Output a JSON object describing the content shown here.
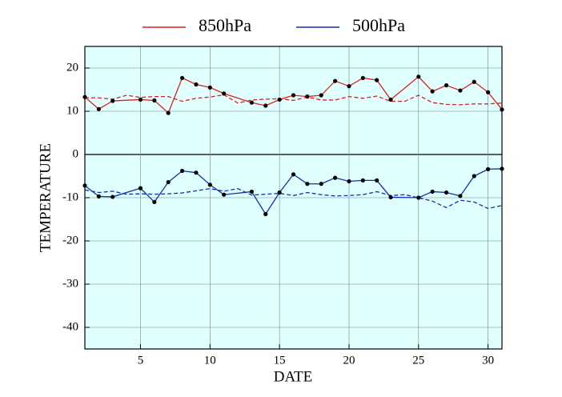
{
  "chart_data": {
    "type": "line",
    "x_label": "DATE",
    "y_label": "TEMPERATURE",
    "xlim": [
      1,
      31
    ],
    "xticks": [
      5,
      10,
      15,
      20,
      25,
      30
    ],
    "ylim": [
      -45,
      25
    ],
    "yticks": [
      -40,
      -30,
      -20,
      -10,
      0,
      10,
      20
    ],
    "grid": true,
    "background": "#e0ffff",
    "legend": "top",
    "series": [
      {
        "name": "850hPa",
        "color": "#e02020",
        "style": "solid",
        "markers": true,
        "x": [
          1,
          2,
          3,
          5,
          6,
          7,
          8,
          9,
          10,
          11,
          13,
          14,
          15,
          16,
          17,
          18,
          19,
          20,
          21,
          22,
          23,
          25,
          26,
          27,
          28,
          29,
          30,
          31
        ],
        "values": [
          13.3,
          10.5,
          12.4,
          12.7,
          12.5,
          9.6,
          17.7,
          16.2,
          15.5,
          14.1,
          12.0,
          11.3,
          12.7,
          13.7,
          13.4,
          13.7,
          17.0,
          15.8,
          17.7,
          17.2,
          12.7,
          18.0,
          14.6,
          16.0,
          14.8,
          16.8,
          14.4,
          10.4
        ]
      },
      {
        "name": "500hPa",
        "color": "#1030b0",
        "style": "solid",
        "markers": true,
        "x": [
          1,
          2,
          3,
          5,
          6,
          7,
          8,
          9,
          10,
          11,
          13,
          14,
          15,
          16,
          17,
          18,
          19,
          20,
          21,
          22,
          23,
          25,
          26,
          27,
          28,
          29,
          30,
          31
        ],
        "values": [
          -7.2,
          -9.7,
          -9.8,
          -7.8,
          -11.0,
          -6.4,
          -3.8,
          -4.2,
          -7.0,
          -9.3,
          -8.6,
          -13.8,
          -8.8,
          -4.6,
          -6.8,
          -6.8,
          -5.4,
          -6.2,
          -6.0,
          -6.0,
          -9.9,
          -10.0,
          -8.6,
          -8.8,
          -9.6,
          -5.0,
          -3.4,
          -3.3
        ]
      },
      {
        "color": "#e02020",
        "style": "dashed",
        "markers": false,
        "x": [
          1,
          2,
          3,
          4,
          5,
          6,
          7,
          8,
          9,
          10,
          11,
          12,
          13,
          14,
          15,
          16,
          17,
          18,
          19,
          20,
          21,
          22,
          23,
          24,
          25,
          26,
          27,
          28,
          29,
          30,
          31
        ],
        "values": [
          13.1,
          13.1,
          12.8,
          13.7,
          13.2,
          13.4,
          13.4,
          12.3,
          13.0,
          13.3,
          13.8,
          11.9,
          12.6,
          12.8,
          12.9,
          12.5,
          13.3,
          12.6,
          12.6,
          13.4,
          13.0,
          13.5,
          12.3,
          12.3,
          13.7,
          12.0,
          11.6,
          11.5,
          11.7,
          11.7,
          11.9
        ]
      },
      {
        "color": "#1030b0",
        "style": "dashed",
        "markers": false,
        "x": [
          1,
          2,
          3,
          4,
          5,
          6,
          7,
          8,
          9,
          10,
          11,
          12,
          13,
          14,
          15,
          16,
          17,
          18,
          19,
          20,
          21,
          22,
          23,
          24,
          25,
          26,
          27,
          28,
          29,
          30,
          31
        ],
        "values": [
          -8.2,
          -8.8,
          -8.5,
          -9.2,
          -9.1,
          -9.2,
          -9.1,
          -8.9,
          -8.4,
          -7.9,
          -8.5,
          -7.9,
          -9.4,
          -9.2,
          -9.0,
          -9.5,
          -8.8,
          -9.3,
          -9.6,
          -9.5,
          -9.3,
          -8.6,
          -9.5,
          -9.3,
          -10.0,
          -10.8,
          -12.3,
          -10.6,
          -11.0,
          -12.5,
          -11.8
        ]
      }
    ]
  }
}
